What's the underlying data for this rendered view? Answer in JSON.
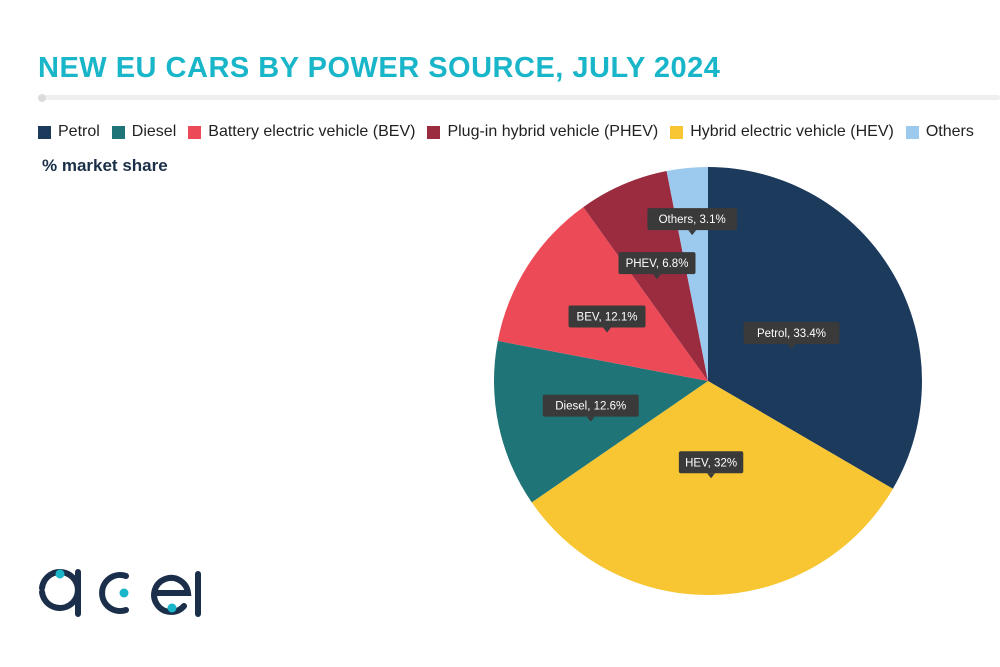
{
  "header": {
    "title": "NEW EU CARS BY POWER SOURCE, JULY 2024",
    "subtitle": "% market share"
  },
  "colors": {
    "title": "#19b5c9",
    "Petrol": "#1b3a5c",
    "Diesel": "#1f7477",
    "BEV": "#ec4a56",
    "PHEV": "#9b2c40",
    "HEV": "#f7c632",
    "Others": "#9ccaef"
  },
  "legend": [
    {
      "label": "Petrol",
      "color": "#1b3a5c"
    },
    {
      "label": "Diesel",
      "color": "#1f7477"
    },
    {
      "label": "Battery electric vehicle (BEV)",
      "color": "#ec4a56"
    },
    {
      "label": "Plug-in hybrid vehicle (PHEV)",
      "color": "#9b2c40"
    },
    {
      "label": "Hybrid electric vehicle (HEV)",
      "color": "#f7c632"
    },
    {
      "label": "Others",
      "color": "#9ccaef"
    }
  ],
  "chart_data": {
    "type": "pie",
    "title": "NEW EU CARS BY POWER SOURCE, JULY 2024",
    "subtitle": "% market share",
    "unit": "%",
    "legend_position": "top",
    "slices": [
      {
        "label": "Petrol",
        "value": 33.4,
        "data_label": "Petrol, 33.4%",
        "color": "#1b3a5c"
      },
      {
        "label": "HEV",
        "value": 32,
        "data_label": "HEV, 32%",
        "color": "#f7c632"
      },
      {
        "label": "Diesel",
        "value": 12.6,
        "data_label": "Diesel, 12.6%",
        "color": "#1f7477"
      },
      {
        "label": "BEV",
        "value": 12.1,
        "data_label": "BEV, 12.1%",
        "color": "#ec4a56"
      },
      {
        "label": "PHEV",
        "value": 6.8,
        "data_label": "PHEV, 6.8%",
        "color": "#9b2c40"
      },
      {
        "label": "Others",
        "value": 3.1,
        "data_label": "Others, 3.1%",
        "color": "#9ccaef"
      }
    ]
  },
  "logo": {
    "text": "acea"
  }
}
